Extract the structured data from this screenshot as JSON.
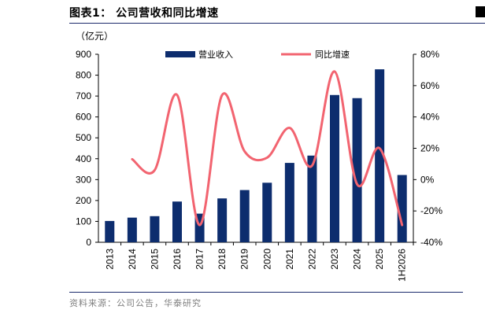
{
  "figure": {
    "title": "图表1： 公司营收和同比增速",
    "source": "资料来源：公司公告，华泰研究"
  },
  "chart_data": {
    "type": "bar+line",
    "unit_label": "（亿元）",
    "categories": [
      "2013",
      "2014",
      "2015",
      "2016",
      "2017",
      "2018",
      "2019",
      "2020",
      "2021",
      "2022",
      "2023",
      "2024",
      "2025",
      "1H2026"
    ],
    "series": [
      {
        "name": "营业收入",
        "type": "bar",
        "axis": "left",
        "color": "#0d2d6e",
        "values": [
          102,
          118,
          125,
          195,
          137,
          210,
          250,
          285,
          380,
          415,
          705,
          690,
          828,
          322
        ]
      },
      {
        "name": "同比增速",
        "type": "line",
        "axis": "right",
        "color": "#f26470",
        "values": [
          null,
          13,
          6,
          54,
          -29,
          54,
          18,
          14,
          33,
          9,
          69,
          -3,
          20,
          -29
        ]
      }
    ],
    "y_left": {
      "min": 0,
      "max": 900,
      "step": 100,
      "ticks": [
        "0",
        "100",
        "200",
        "300",
        "400",
        "500",
        "600",
        "700",
        "800",
        "900"
      ]
    },
    "y_right": {
      "min": -40,
      "max": 80,
      "step": 20,
      "ticks": [
        "-40%",
        "-20%",
        "0%",
        "20%",
        "40%",
        "60%",
        "80%"
      ]
    },
    "legend_position": "top",
    "grid": false
  }
}
